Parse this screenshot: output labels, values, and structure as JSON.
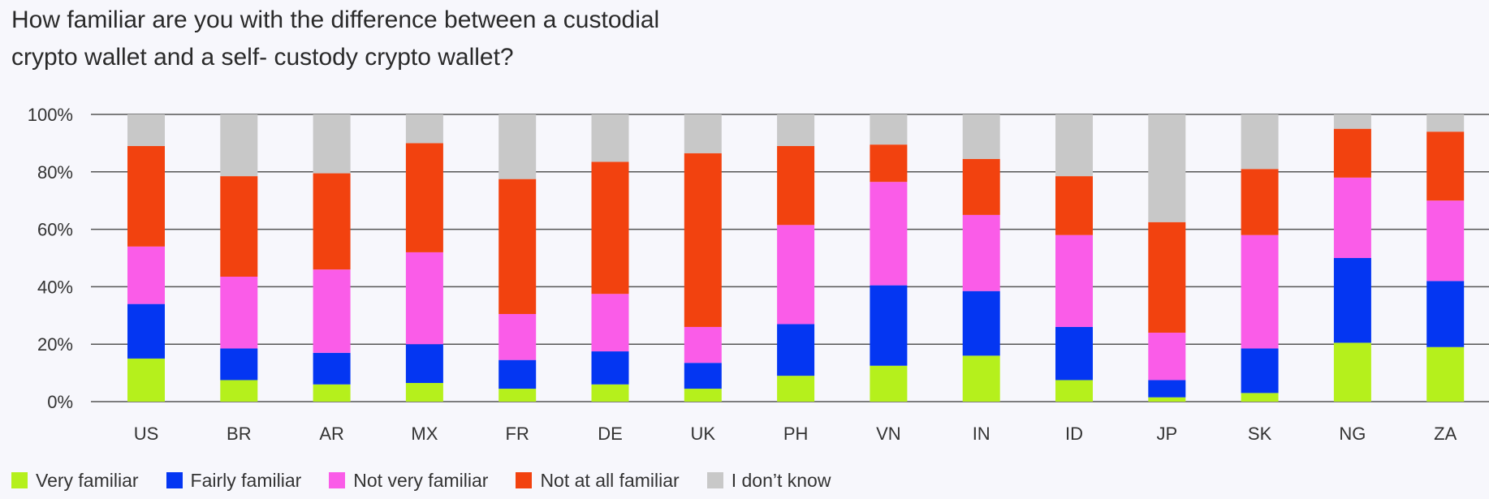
{
  "chart_data": {
    "type": "bar",
    "stacked": true,
    "title": "How familiar are you with the difference between a custodial crypto wallet and a self- custody crypto wallet?",
    "title_lines": [
      "How familiar are you with the difference between a custodial",
      "crypto wallet and a self- custody crypto wallet?"
    ],
    "xlabel": "",
    "ylabel": "",
    "ylim": [
      0,
      100
    ],
    "y_ticks": [
      "0%",
      "20%",
      "40%",
      "60%",
      "80%",
      "100%"
    ],
    "y_tick_values": [
      0,
      20,
      40,
      60,
      80,
      100
    ],
    "categories": [
      "US",
      "BR",
      "AR",
      "MX",
      "FR",
      "DE",
      "UK",
      "PH",
      "VN",
      "IN",
      "ID",
      "JP",
      "SK",
      "NG",
      "ZA"
    ],
    "legend_position": "bottom-left",
    "series": [
      {
        "name": "Very familiar",
        "color": "#b5f01c",
        "values": [
          15,
          7.5,
          6,
          6.5,
          4.5,
          6,
          4.5,
          9,
          12.5,
          16,
          7.5,
          1.5,
          3,
          20.5,
          19
        ]
      },
      {
        "name": "Fairly familiar",
        "color": "#0436f2",
        "values": [
          19,
          11,
          11,
          13.5,
          10,
          11.5,
          9,
          18,
          28,
          22.5,
          18.5,
          6,
          15.5,
          29.5,
          23
        ]
      },
      {
        "name": "Not very familiar",
        "color": "#fa5ce8",
        "values": [
          20,
          25,
          29,
          32,
          16,
          20,
          12.5,
          34.5,
          36,
          26.5,
          32,
          16.5,
          39.5,
          28,
          28
        ]
      },
      {
        "name": "Not at all familiar",
        "color": "#f2420f",
        "values": [
          35,
          35,
          33.5,
          38,
          47,
          46,
          60.5,
          27.5,
          13,
          19.5,
          20.5,
          38.5,
          23,
          17,
          24
        ]
      },
      {
        "name": "I don’t know",
        "color": "#c8c8c8",
        "values": [
          11,
          21.5,
          20.5,
          10,
          22.5,
          16.5,
          13.5,
          11,
          10.5,
          15.5,
          21.5,
          37.5,
          19,
          5,
          6
        ]
      }
    ]
  }
}
